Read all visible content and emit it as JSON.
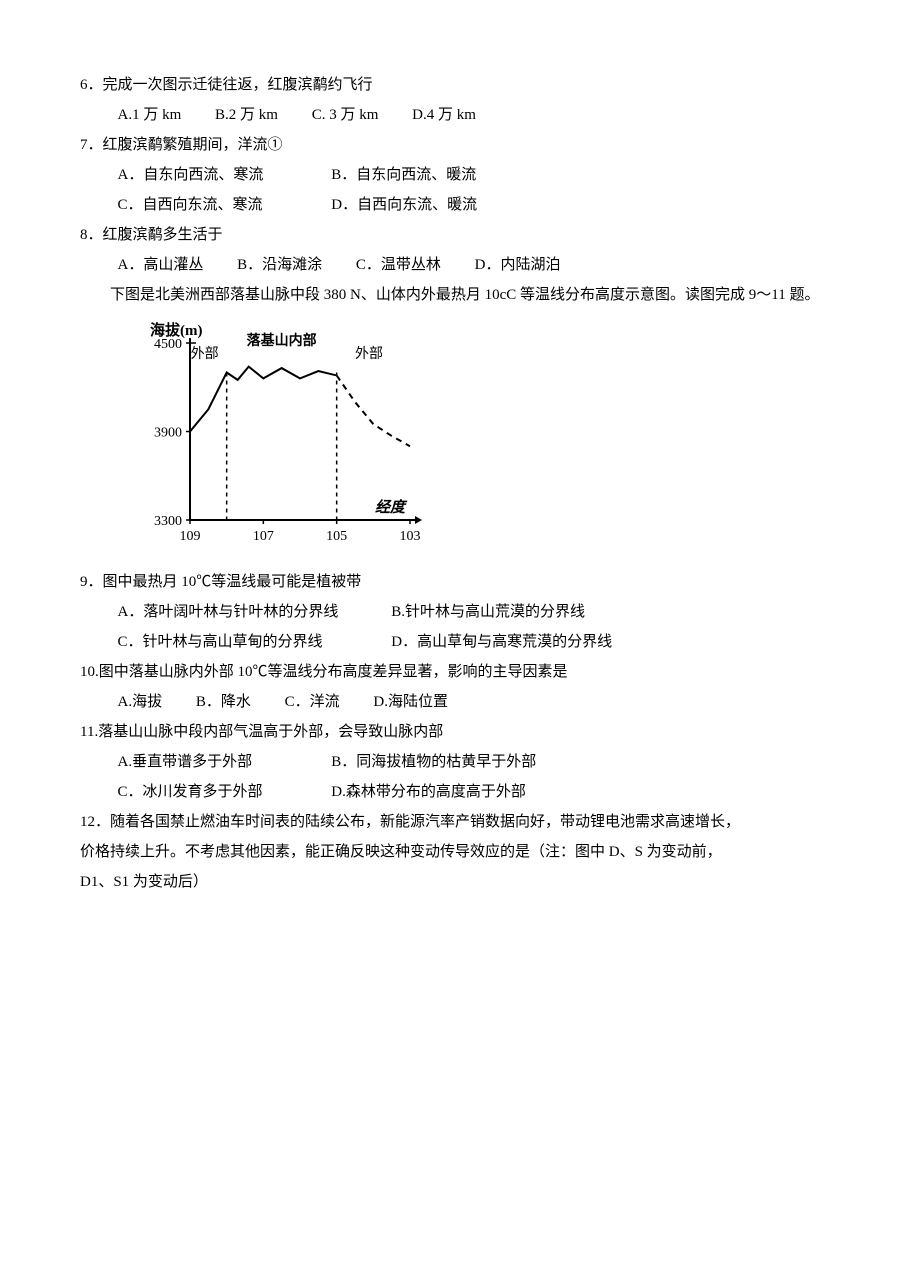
{
  "q6": {
    "text": "6．完成一次图示迁徒往返，红腹滨鹬约飞行",
    "opts": {
      "a": "A.1 万 km",
      "b": "B.2 万 km",
      "c": "C. 3 万 km",
      "d": "D.4 万 km"
    }
  },
  "q7": {
    "text": "7．红腹滨鹬繁殖期间，洋流①",
    "opts": {
      "a": "A．自东向西流、寒流",
      "b": "B．自东向西流、暖流",
      "c": "C．自西向东流、寒流",
      "d": "D．自西向东流、暖流"
    }
  },
  "q8": {
    "text": "8．红腹滨鹬多生活于",
    "opts": {
      "a": "A．高山灌丛",
      "b": "B．沿海滩涂",
      "c": "C．温带丛林",
      "d": "D．内陆湖泊"
    }
  },
  "intro1": "下图是北美洲西部落基山脉中段 380 N、山体内外最热月 10cC 等温线分布高度示意图。读图完成 9～11 题。",
  "chart": {
    "y_label": "海拔(m)",
    "x_label": "经度",
    "inner_label": "落基山内部",
    "outer_label_left": "外部",
    "outer_label_right": "外部",
    "y_ticks": [
      3300,
      3900,
      4500
    ],
    "x_ticks": [
      109,
      107,
      105,
      103
    ],
    "x_domain": [
      109,
      103
    ],
    "y_domain": [
      3300,
      4500
    ],
    "dash_x": [
      108,
      105
    ],
    "line_points": [
      [
        109,
        3900
      ],
      [
        108.5,
        4050
      ],
      [
        108.0,
        4300
      ],
      [
        107.7,
        4250
      ],
      [
        107.4,
        4340
      ],
      [
        107.0,
        4260
      ],
      [
        106.5,
        4330
      ],
      [
        106.0,
        4260
      ],
      [
        105.5,
        4310
      ],
      [
        105.0,
        4280
      ],
      [
        104.5,
        4100
      ],
      [
        104.0,
        3950
      ],
      [
        103.5,
        3870
      ],
      [
        103.0,
        3800
      ]
    ],
    "stroke_color": "#000000",
    "stroke_width": 2,
    "bg": "#ffffff"
  },
  "q9": {
    "text": "9．图中最热月 10℃等温线最可能是植被带",
    "opts": {
      "a": "A．落叶阔叶林与针叶林的分界线",
      "b": "B.针叶林与高山荒漠的分界线",
      "c": "C．针叶林与高山草甸的分界线",
      "d": "D．高山草甸与高寒荒漠的分界线"
    }
  },
  "q10": {
    "text": "10.图中落基山脉内外部 10℃等温线分布高度差异显著，影响的主导因素是",
    "opts": {
      "a": "A.海拔",
      "b": "B．降水",
      "c": "C．洋流",
      "d": "D.海陆位置"
    }
  },
  "q11": {
    "text": "11.落基山山脉中段内部气温高于外部，会导致山脉内部",
    "opts": {
      "a": "A.垂直带谱多于外部",
      "b": "B．同海拔植物的枯黄早于外部",
      "c": "C．冰川发育多于外部",
      "d": "D.森林带分布的高度高于外部"
    }
  },
  "q12": {
    "line1": "12．随着各国禁止燃油车时间表的陆续公布，新能源汽率产销数据向好，带动锂电池需求高速增长，",
    "line2": "价格持续上升。不考虑其他因素，能正确反映这种变动传导效应的是（注：图中 D、S 为变动前，",
    "line3": "D1、S1 为变动后）"
  }
}
